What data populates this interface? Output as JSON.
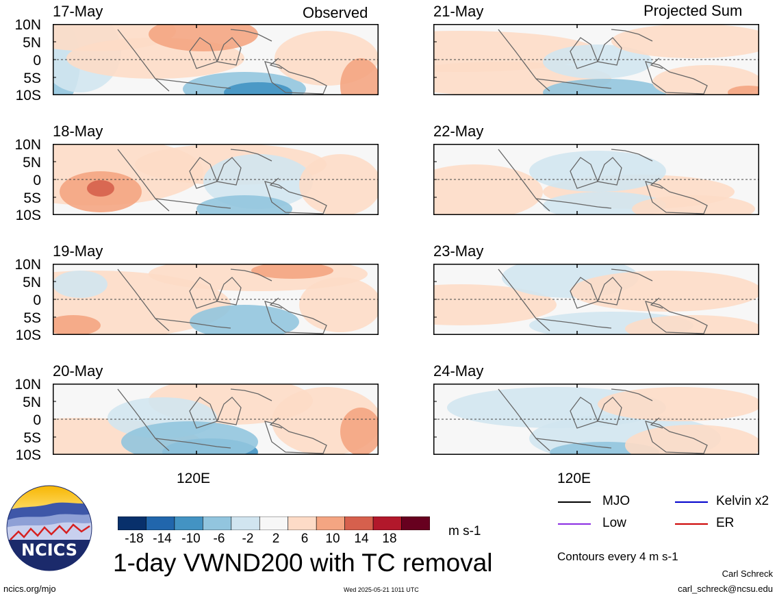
{
  "headers": {
    "left": "Observed",
    "right": "Projected Sum"
  },
  "lat_labels": [
    "10N",
    "5N",
    "0",
    "5S",
    "10S"
  ],
  "lon_label": "120E",
  "panels": [
    {
      "column": "left",
      "row": 0,
      "date": "17-May"
    },
    {
      "column": "left",
      "row": 1,
      "date": "18-May"
    },
    {
      "column": "left",
      "row": 2,
      "date": "19-May"
    },
    {
      "column": "left",
      "row": 3,
      "date": "20-May"
    },
    {
      "column": "right",
      "row": 0,
      "date": "21-May"
    },
    {
      "column": "right",
      "row": 1,
      "date": "22-May"
    },
    {
      "column": "right",
      "row": 2,
      "date": "23-May"
    },
    {
      "column": "right",
      "row": 3,
      "date": "24-May"
    }
  ],
  "colorbar": {
    "ticks": [
      "-18",
      "-14",
      "-10",
      "-6",
      "-2",
      "2",
      "6",
      "10",
      "14",
      "18"
    ],
    "units": "m s-1",
    "colors": [
      "#08306b",
      "#2166ac",
      "#4393c3",
      "#92c5de",
      "#d1e5f0",
      "#f7f7f7",
      "#fddbc7",
      "#f4a582",
      "#d6604d",
      "#b2182b",
      "#67001f"
    ]
  },
  "legend": [
    {
      "label": "MJO",
      "color": "#000000",
      "style": "solid"
    },
    {
      "label": "Kelvin x2",
      "color": "#0000cc",
      "style": "solid"
    },
    {
      "label": "Low",
      "color": "#8a2be2",
      "style": "solid"
    },
    {
      "label": "ER",
      "color": "#cc0000",
      "style": "solid"
    }
  ],
  "contour_note": "Contours every 4 m s-1",
  "title": "1-day VWND200 with TC removal",
  "logo_text": "NCICS",
  "footer": {
    "url": "ncics.org/mjo",
    "timestamp": "Wed 2025-05-21 1011 UTC",
    "author": "Carl Schreck",
    "email": "carl_schreck@ncsu.edu"
  }
}
